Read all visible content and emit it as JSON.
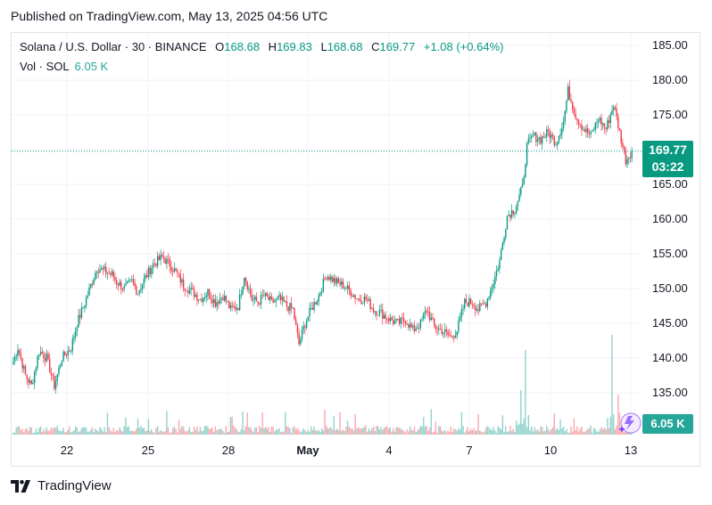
{
  "header": {
    "published": "Published on TradingView.com, May 13, 2025 04:56 UTC"
  },
  "legend": {
    "symbol": "Solana / U.S. Dollar · 30 · BINANCE",
    "open_label": "O",
    "open": "168.68",
    "high_label": "H",
    "high": "169.83",
    "low_label": "L",
    "low": "168.68",
    "close_label": "C",
    "close": "169.77",
    "change": "+1.08 (+0.64%)"
  },
  "volume_legend": {
    "label": "Vol · SOL",
    "value": "6.05 K"
  },
  "price_badge": {
    "price": "169.77",
    "countdown": "03:22"
  },
  "volume_badge": {
    "value": "6.05 K"
  },
  "brand": {
    "name": "TradingView"
  },
  "colors": {
    "up": "#089981",
    "down": "#f23645",
    "vol_up": "#26a69a",
    "vol_down": "#f7525f",
    "grid": "#f0f3fa"
  },
  "chart_data": {
    "type": "candlestick",
    "y_ticks": [
      "185.00",
      "180.00",
      "175.00",
      "170.00",
      "165.00",
      "160.00",
      "155.00",
      "150.00",
      "145.00",
      "140.00",
      "135.00"
    ],
    "y_tick_values": [
      185,
      180,
      175,
      170,
      165,
      160,
      155,
      150,
      145,
      140,
      135
    ],
    "x_ticks": [
      "22",
      "25",
      "28",
      "May",
      "4",
      "7",
      "10",
      "13"
    ],
    "ylim": [
      133.5,
      186.5
    ],
    "last_price": 169.77,
    "close_path": [
      {
        "t": 0,
        "p": 139.5
      },
      {
        "t": 3,
        "p": 141.5
      },
      {
        "t": 8,
        "p": 137.5
      },
      {
        "t": 12,
        "p": 136.0
      },
      {
        "t": 17,
        "p": 141.0
      },
      {
        "t": 22,
        "p": 140.0
      },
      {
        "t": 27,
        "p": 136.0
      },
      {
        "t": 32,
        "p": 140.0
      },
      {
        "t": 38,
        "p": 141.5
      },
      {
        "t": 42,
        "p": 145.0
      },
      {
        "t": 48,
        "p": 148.5
      },
      {
        "t": 55,
        "p": 153.0
      },
      {
        "t": 60,
        "p": 152.5
      },
      {
        "t": 65,
        "p": 152.0
      },
      {
        "t": 68,
        "p": 151.0
      },
      {
        "t": 73,
        "p": 150.0
      },
      {
        "t": 78,
        "p": 151.0
      },
      {
        "t": 82,
        "p": 149.5
      },
      {
        "t": 88,
        "p": 152.0
      },
      {
        "t": 92,
        "p": 153.5
      },
      {
        "t": 98,
        "p": 154.5
      },
      {
        "t": 103,
        "p": 153.5
      },
      {
        "t": 108,
        "p": 152.0
      },
      {
        "t": 112,
        "p": 150.5
      },
      {
        "t": 118,
        "p": 149.5
      },
      {
        "t": 123,
        "p": 148.5
      },
      {
        "t": 128,
        "p": 149.5
      },
      {
        "t": 133,
        "p": 148.0
      },
      {
        "t": 138,
        "p": 149.0
      },
      {
        "t": 143,
        "p": 147.0
      },
      {
        "t": 148,
        "p": 147.5
      },
      {
        "t": 152,
        "p": 152.0
      },
      {
        "t": 157,
        "p": 148.5
      },
      {
        "t": 161,
        "p": 148.0
      },
      {
        "t": 165,
        "p": 149.0
      },
      {
        "t": 170,
        "p": 148.0
      },
      {
        "t": 175,
        "p": 148.5
      },
      {
        "t": 180,
        "p": 147.5
      },
      {
        "t": 184,
        "p": 147.0
      },
      {
        "t": 188,
        "p": 142.0
      },
      {
        "t": 192,
        "p": 145.0
      },
      {
        "t": 196,
        "p": 147.0
      },
      {
        "t": 201,
        "p": 149.0
      },
      {
        "t": 206,
        "p": 152.0
      },
      {
        "t": 212,
        "p": 151.0
      },
      {
        "t": 217,
        "p": 150.5
      },
      {
        "t": 222,
        "p": 149.5
      },
      {
        "t": 227,
        "p": 148.5
      },
      {
        "t": 232,
        "p": 148.5
      },
      {
        "t": 237,
        "p": 147.0
      },
      {
        "t": 242,
        "p": 146.5
      },
      {
        "t": 248,
        "p": 145.5
      },
      {
        "t": 253,
        "p": 145.0
      },
      {
        "t": 258,
        "p": 145.5
      },
      {
        "t": 263,
        "p": 144.0
      },
      {
        "t": 268,
        "p": 145.0
      },
      {
        "t": 272,
        "p": 147.0
      },
      {
        "t": 277,
        "p": 144.5
      },
      {
        "t": 282,
        "p": 144.0
      },
      {
        "t": 288,
        "p": 143.0
      },
      {
        "t": 292,
        "p": 144.0
      },
      {
        "t": 297,
        "p": 148.0
      },
      {
        "t": 302,
        "p": 148.0
      },
      {
        "t": 306,
        "p": 147.0
      },
      {
        "t": 311,
        "p": 148.0
      },
      {
        "t": 316,
        "p": 151.0
      },
      {
        "t": 320,
        "p": 154.0
      },
      {
        "t": 325,
        "p": 160.5
      },
      {
        "t": 330,
        "p": 161.5
      },
      {
        "t": 335,
        "p": 164.5
      },
      {
        "t": 338,
        "p": 170.5
      },
      {
        "t": 342,
        "p": 172.0
      },
      {
        "t": 347,
        "p": 171.5
      },
      {
        "t": 352,
        "p": 172.5
      },
      {
        "t": 357,
        "p": 171.0
      },
      {
        "t": 362,
        "p": 174.0
      },
      {
        "t": 365,
        "p": 178.5
      },
      {
        "t": 370,
        "p": 175.0
      },
      {
        "t": 375,
        "p": 173.0
      },
      {
        "t": 380,
        "p": 172.0
      },
      {
        "t": 385,
        "p": 174.5
      },
      {
        "t": 390,
        "p": 173.0
      },
      {
        "t": 395,
        "p": 176.5
      },
      {
        "t": 400,
        "p": 171.5
      },
      {
        "t": 403,
        "p": 168.5
      },
      {
        "t": 407,
        "p": 169.77
      }
    ]
  }
}
